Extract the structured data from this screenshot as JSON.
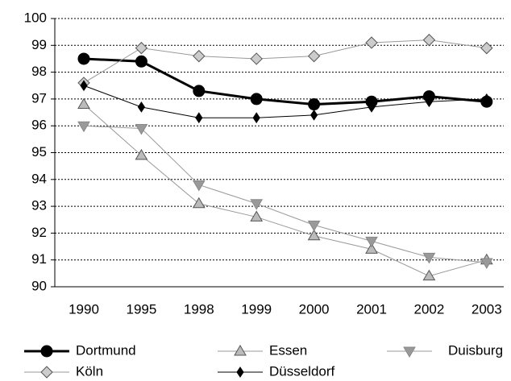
{
  "chart_data": {
    "type": "line",
    "categories": [
      "1990",
      "1995",
      "1998",
      "1999",
      "2000",
      "2001",
      "2002",
      "2003"
    ],
    "series": [
      {
        "name": "Dortmund",
        "color": "#000000",
        "marker": "circle",
        "line_width": 3,
        "values": [
          98.5,
          98.4,
          97.3,
          97.0,
          96.8,
          96.9,
          97.1,
          96.9
        ]
      },
      {
        "name": "Essen",
        "color": "#999999",
        "marker": "triangle-up",
        "line_width": 1,
        "values": [
          96.8,
          94.9,
          93.1,
          92.6,
          91.9,
          91.4,
          90.4,
          91.0
        ]
      },
      {
        "name": "Duisburg",
        "color": "#999999",
        "marker": "triangle-down",
        "line_width": 1,
        "values": [
          96.0,
          95.9,
          93.8,
          93.1,
          92.3,
          91.7,
          91.1,
          90.9
        ]
      },
      {
        "name": "Köln",
        "color": "#999999",
        "marker": "diamond",
        "line_width": 1,
        "values": [
          97.6,
          98.9,
          98.6,
          98.5,
          98.6,
          99.1,
          99.2,
          98.9
        ]
      },
      {
        "name": "Düsseldorf",
        "color": "#000000",
        "marker": "small-diamond",
        "line_width": 1,
        "values": [
          97.5,
          96.7,
          96.3,
          96.3,
          96.4,
          96.7,
          96.9,
          97.0
        ]
      }
    ],
    "ylim": [
      90,
      100
    ],
    "yticks": [
      90,
      91,
      92,
      93,
      94,
      95,
      96,
      97,
      98,
      99,
      100
    ],
    "grid": true,
    "legend": "bottom"
  }
}
